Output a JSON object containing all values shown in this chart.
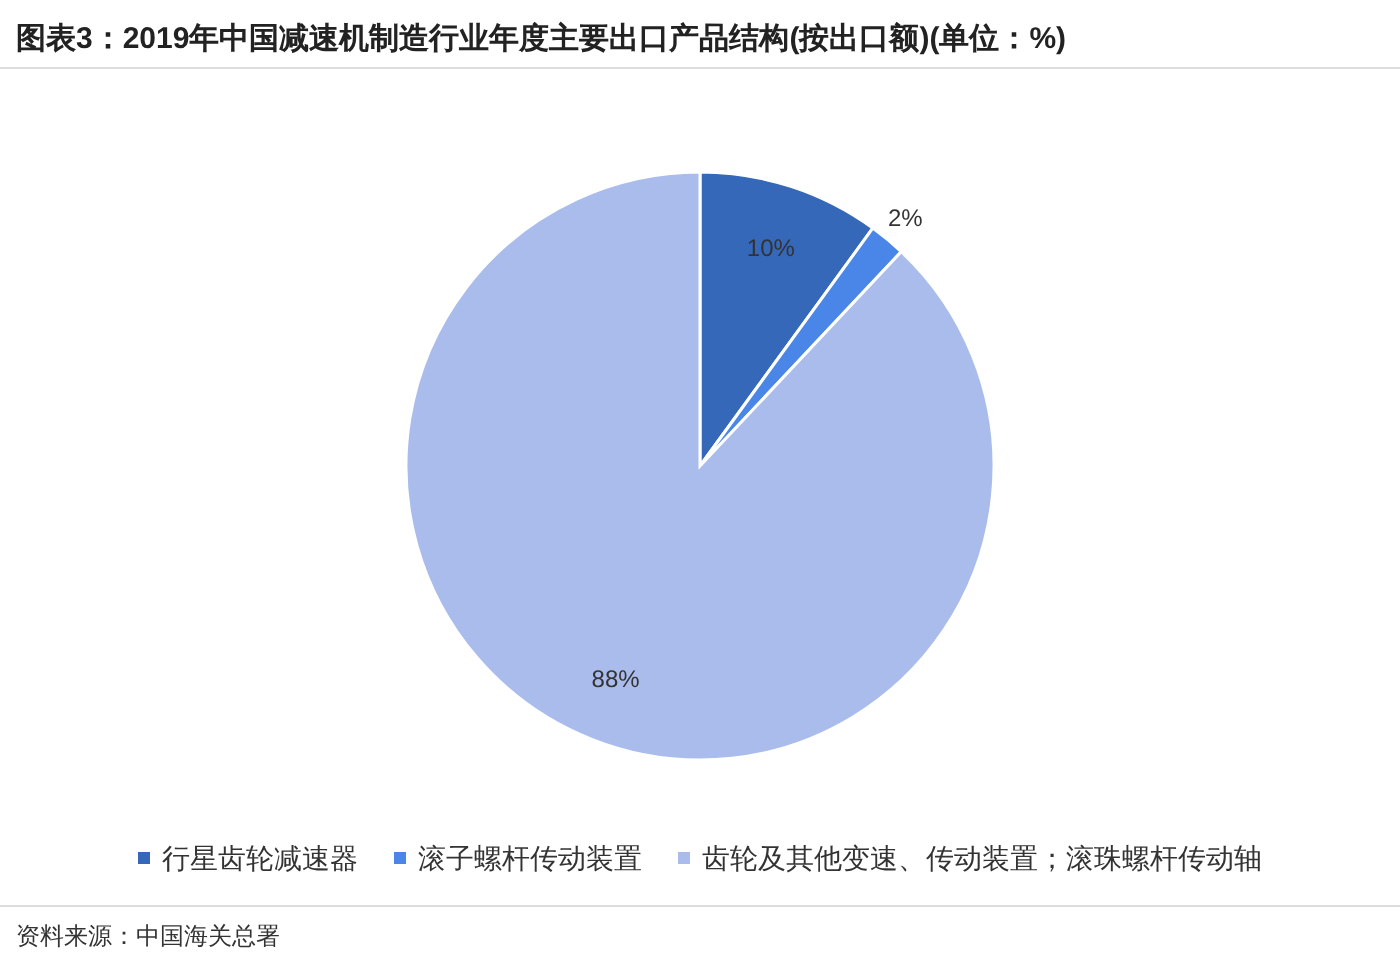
{
  "chart_data": {
    "type": "pie",
    "title": "图表3：2019年中国减速机制造行业年度主要出口产品结构(按出口额)(单位：%)",
    "categories": [
      "行星齿轮减速器",
      "滚子螺杆传动装置",
      "齿轮及其他变速、传动装置；滚珠螺杆传动轴"
    ],
    "values": [
      10,
      2,
      88
    ],
    "colors": [
      "#3568b8",
      "#4a86e8",
      "#a9bcec"
    ],
    "value_labels": [
      "10%",
      "2%",
      "88%"
    ],
    "legend": "bottom",
    "annotations": [
      "资料来源：中国海关总署"
    ]
  }
}
